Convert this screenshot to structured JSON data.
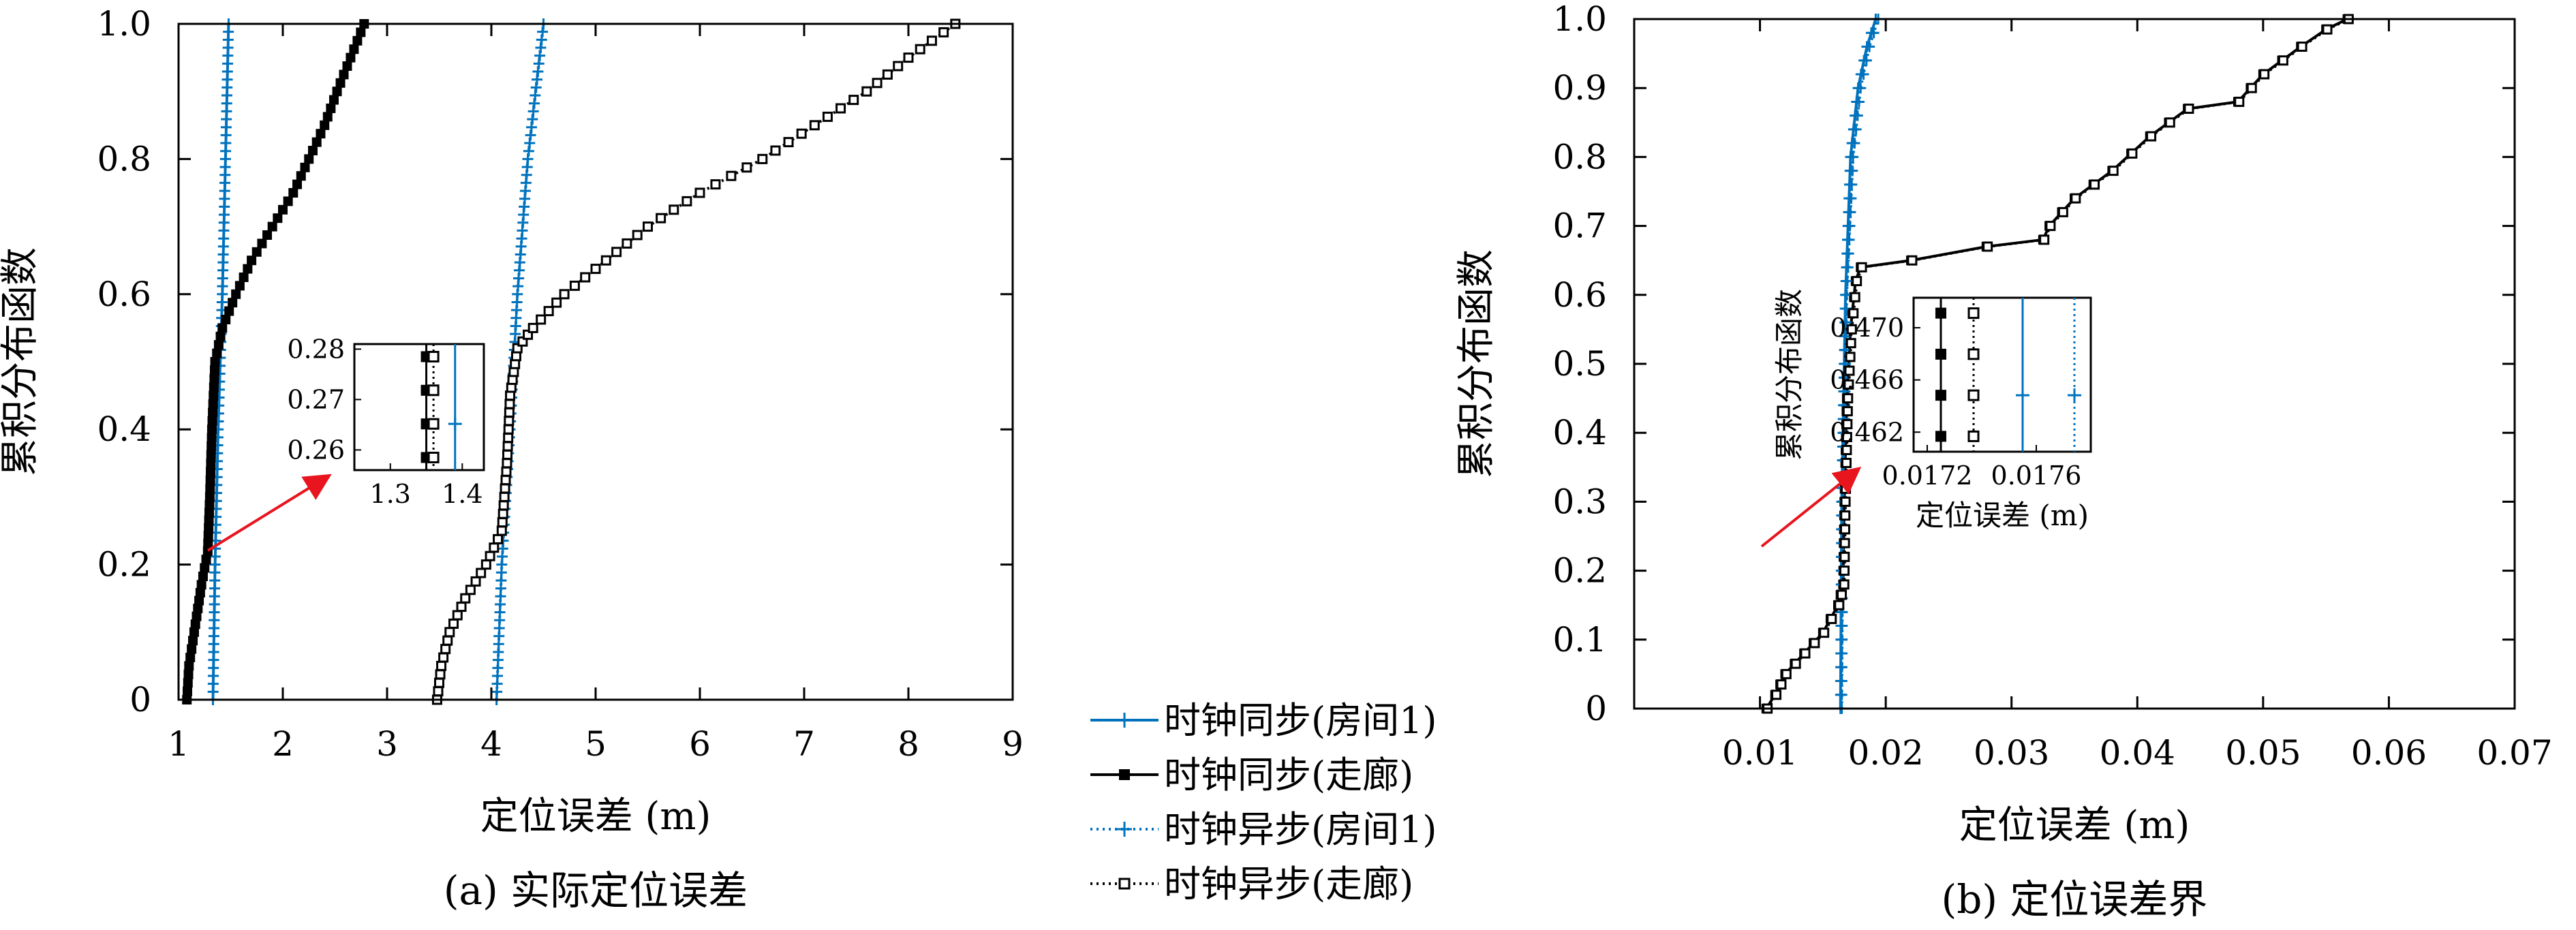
{
  "colors": {
    "blue": "#0072BD",
    "black": "#000000",
    "arrow": "#E8141E"
  },
  "legend": {
    "entries": [
      {
        "label": "时钟同步(房间1)",
        "color": "#0072BD",
        "line": "solid",
        "marker": "plus"
      },
      {
        "label": "时钟同步(走廊)",
        "color": "#000000",
        "line": "solid",
        "marker": "filled-square"
      },
      {
        "label": "时钟异步(房间1)",
        "color": "#0072BD",
        "line": "dotted",
        "marker": "plus"
      },
      {
        "label": "时钟异步(走廊)",
        "color": "#000000",
        "line": "dotted",
        "marker": "open-square"
      }
    ]
  },
  "chart_data": [
    {
      "type": "line",
      "caption": "(a) 实际定位误差",
      "xlabel": "定位误差 (m)",
      "ylabel": "累积分布函数",
      "xlim": [
        1,
        9
      ],
      "ylim": [
        0,
        1
      ],
      "xticks": [
        1,
        2,
        3,
        4,
        5,
        6,
        7,
        8,
        9
      ],
      "yticks": [
        0,
        0.2,
        0.4,
        0.6,
        0.8,
        1.0
      ],
      "ytick_labels": [
        "0",
        "0.2",
        "0.4",
        "0.6",
        "0.8",
        "1.0"
      ],
      "grid": false,
      "series": [
        {
          "name": "时钟同步(房间1)",
          "color": "#0072BD",
          "marker": "plus",
          "points": [
            [
              1.33,
              0
            ],
            [
              1.35,
              0.2
            ],
            [
              1.38,
              0.4
            ],
            [
              1.42,
              0.6
            ],
            [
              1.45,
              0.8
            ],
            [
              1.48,
              1.0
            ]
          ]
        },
        {
          "name": "时钟同步(走廊)",
          "color": "#000000",
          "marker": "filled-square",
          "points": [
            [
              1.08,
              0
            ],
            [
              1.1,
              0.05
            ],
            [
              1.15,
              0.1
            ],
            [
              1.22,
              0.17
            ],
            [
              1.28,
              0.22
            ],
            [
              1.3,
              0.3
            ],
            [
              1.32,
              0.4
            ],
            [
              1.35,
              0.5
            ],
            [
              1.42,
              0.55
            ],
            [
              1.55,
              0.6
            ],
            [
              1.7,
              0.65
            ],
            [
              1.9,
              0.7
            ],
            [
              2.1,
              0.75
            ],
            [
              2.25,
              0.8
            ],
            [
              2.4,
              0.85
            ],
            [
              2.52,
              0.9
            ],
            [
              2.65,
              0.95
            ],
            [
              2.78,
              1.0
            ]
          ]
        },
        {
          "name": "时钟异步(房间1)",
          "color": "#0072BD",
          "marker": "plus",
          "points": [
            [
              4.05,
              0
            ],
            [
              4.1,
              0.2
            ],
            [
              4.18,
              0.4
            ],
            [
              4.25,
              0.6
            ],
            [
              4.35,
              0.8
            ],
            [
              4.5,
              1.0
            ]
          ]
        },
        {
          "name": "时钟异步(走廊)",
          "color": "#000000",
          "marker": "open-square",
          "points": [
            [
              3.48,
              0
            ],
            [
              3.52,
              0.05
            ],
            [
              3.6,
              0.1
            ],
            [
              3.75,
              0.15
            ],
            [
              3.95,
              0.2
            ],
            [
              4.1,
              0.25
            ],
            [
              4.15,
              0.35
            ],
            [
              4.18,
              0.45
            ],
            [
              4.25,
              0.52
            ],
            [
              4.4,
              0.55
            ],
            [
              4.7,
              0.6
            ],
            [
              5.1,
              0.65
            ],
            [
              5.5,
              0.7
            ],
            [
              6.0,
              0.75
            ],
            [
              6.6,
              0.8
            ],
            [
              7.1,
              0.85
            ],
            [
              7.6,
              0.9
            ],
            [
              8.0,
              0.95
            ],
            [
              8.45,
              1.0
            ]
          ]
        }
      ],
      "inset": {
        "xlim": [
          1.25,
          1.43
        ],
        "ylim": [
          0.256,
          0.281
        ],
        "xticks": [
          1.3,
          1.4
        ],
        "yticks": [
          0.26,
          0.27,
          0.28
        ],
        "series": [
          {
            "name": "时钟同步(走廊)",
            "x": 1.35,
            "marker": "filled-square",
            "color": "#000000"
          },
          {
            "name": "时钟异步(走廊)",
            "x": 1.36,
            "marker": "open-square",
            "color": "#000000",
            "dotted": true
          },
          {
            "name": "时钟同步(房间1)",
            "x": 1.39,
            "marker": "plus",
            "color": "#0072BD"
          }
        ]
      }
    },
    {
      "type": "line",
      "caption": "(b) 定位误差界",
      "xlabel": "定位误差 (m)",
      "ylabel": "累积分布函数",
      "xlim": [
        0,
        0.07
      ],
      "ylim": [
        0,
        1
      ],
      "xticks": [
        0.01,
        0.02,
        0.03,
        0.04,
        0.05,
        0.06,
        0.07
      ],
      "xtick_labels": [
        "0.01",
        "0.02",
        "0.03",
        "0.04",
        "0.05",
        "0.06",
        "0.07"
      ],
      "yticks": [
        0,
        0.1,
        0.2,
        0.3,
        0.4,
        0.5,
        0.6,
        0.7,
        0.8,
        0.9,
        1.0
      ],
      "ytick_labels": [
        "0",
        "0.1",
        "0.2",
        "0.3",
        "0.4",
        "0.5",
        "0.6",
        "0.7",
        "0.8",
        "0.9",
        "1.0"
      ],
      "grid": false,
      "series": [
        {
          "name": "时钟同步(房间1)",
          "color": "#0072BD",
          "marker": "plus",
          "points": [
            [
              0.0164,
              0
            ],
            [
              0.0165,
              0.3
            ],
            [
              0.0168,
              0.6
            ],
            [
              0.0172,
              0.8
            ],
            [
              0.0178,
              0.9
            ],
            [
              0.0185,
              0.96
            ],
            [
              0.0192,
              1.0
            ]
          ]
        },
        {
          "name": "时钟同步(走廊)",
          "color": "#000000",
          "marker": "filled-square",
          "points": [
            [
              0.0105,
              0
            ],
            [
              0.0112,
              0.02
            ],
            [
              0.012,
              0.05
            ],
            [
              0.0135,
              0.08
            ],
            [
              0.015,
              0.11
            ],
            [
              0.0162,
              0.15
            ],
            [
              0.0166,
              0.18
            ],
            [
              0.0167,
              0.3
            ],
            [
              0.0169,
              0.45
            ],
            [
              0.0172,
              0.55
            ],
            [
              0.0176,
              0.62
            ],
            [
              0.018,
              0.64
            ],
            [
              0.022,
              0.65
            ],
            [
              0.028,
              0.67
            ],
            [
              0.0325,
              0.68
            ],
            [
              0.033,
              0.7
            ],
            [
              0.035,
              0.74
            ],
            [
              0.038,
              0.78
            ],
            [
              0.041,
              0.83
            ],
            [
              0.044,
              0.87
            ],
            [
              0.048,
              0.88
            ],
            [
              0.05,
              0.92
            ],
            [
              0.053,
              0.96
            ],
            [
              0.055,
              0.985
            ],
            [
              0.0567,
              1.0
            ]
          ]
        },
        {
          "name": "时钟异步(房间1)",
          "color": "#0072BD",
          "marker": "plus",
          "points": [
            [
              0.0165,
              0
            ],
            [
              0.0166,
              0.3
            ],
            [
              0.0169,
              0.6
            ],
            [
              0.0174,
              0.8
            ],
            [
              0.018,
              0.9
            ],
            [
              0.0187,
              0.96
            ],
            [
              0.0194,
              1.0
            ]
          ]
        },
        {
          "name": "时钟异步(走廊)",
          "color": "#000000",
          "marker": "open-square",
          "points": [
            [
              0.0106,
              0
            ],
            [
              0.0113,
              0.02
            ],
            [
              0.0121,
              0.05
            ],
            [
              0.0136,
              0.08
            ],
            [
              0.0151,
              0.11
            ],
            [
              0.0163,
              0.15
            ],
            [
              0.0167,
              0.18
            ],
            [
              0.0168,
              0.3
            ],
            [
              0.017,
              0.45
            ],
            [
              0.0173,
              0.55
            ],
            [
              0.0177,
              0.62
            ],
            [
              0.0181,
              0.64
            ],
            [
              0.0221,
              0.65
            ],
            [
              0.0281,
              0.67
            ],
            [
              0.0326,
              0.68
            ],
            [
              0.0331,
              0.7
            ],
            [
              0.0351,
              0.74
            ],
            [
              0.0381,
              0.78
            ],
            [
              0.0411,
              0.83
            ],
            [
              0.0441,
              0.87
            ],
            [
              0.0481,
              0.88
            ],
            [
              0.0501,
              0.92
            ],
            [
              0.0531,
              0.96
            ],
            [
              0.0551,
              0.985
            ],
            [
              0.0568,
              1.0
            ]
          ]
        }
      ],
      "inset": {
        "xlabel": "定位误差 (m)",
        "ylabel": "累积分布函数",
        "xlim": [
          0.01715,
          0.0178
        ],
        "ylim": [
          0.4605,
          0.4723
        ],
        "xticks": [
          0.0172,
          0.0176
        ],
        "xtick_labels": [
          "0.0172",
          "0.0176"
        ],
        "yticks": [
          0.462,
          0.466,
          0.47
        ],
        "ytick_labels": [
          "0.462",
          "0.466",
          "0.470"
        ],
        "series": [
          {
            "name": "时钟同步(走廊)",
            "x": 0.01725,
            "marker": "filled-square",
            "color": "#000000"
          },
          {
            "name": "时钟异步(走廊)",
            "x": 0.01737,
            "marker": "open-square",
            "color": "#000000",
            "dotted": true
          },
          {
            "name": "时钟同步(房间1)",
            "x": 0.01755,
            "marker": "plus",
            "color": "#0072BD"
          },
          {
            "name": "时钟异步(房间1)",
            "x": 0.01774,
            "marker": "plus",
            "color": "#0072BD",
            "dotted": true
          }
        ]
      }
    }
  ]
}
